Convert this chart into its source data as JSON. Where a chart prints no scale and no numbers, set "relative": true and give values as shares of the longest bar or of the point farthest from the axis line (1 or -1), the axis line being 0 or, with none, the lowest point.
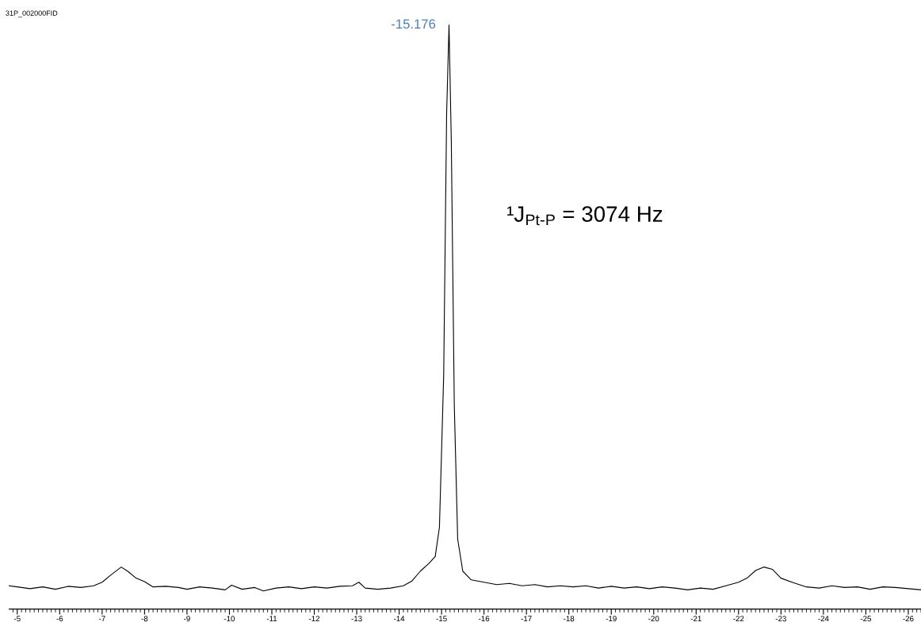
{
  "chart_data": {
    "type": "line",
    "relative": true,
    "x": [
      -4.81,
      -5.0,
      -5.3,
      -5.6,
      -5.9,
      -6.2,
      -6.5,
      -6.8,
      -7.0,
      -7.2,
      -7.45,
      -7.6,
      -7.8,
      -8.0,
      -8.2,
      -8.5,
      -8.8,
      -9.0,
      -9.3,
      -9.6,
      -9.9,
      -10.05,
      -10.3,
      -10.6,
      -10.8,
      -11.1,
      -11.4,
      -11.7,
      -12.0,
      -12.3,
      -12.6,
      -12.9,
      -13.05,
      -13.2,
      -13.5,
      -13.8,
      -14.1,
      -14.3,
      -14.5,
      -14.7,
      -14.85,
      -14.95,
      -15.05,
      -15.12,
      -15.176,
      -15.23,
      -15.3,
      -15.38,
      -15.5,
      -15.7,
      -16.0,
      -16.3,
      -16.6,
      -16.9,
      -17.2,
      -17.5,
      -17.8,
      -18.1,
      -18.4,
      -18.7,
      -19.0,
      -19.3,
      -19.6,
      -19.9,
      -20.2,
      -20.5,
      -20.8,
      -21.1,
      -21.4,
      -21.7,
      -22.0,
      -22.2,
      -22.4,
      -22.6,
      -22.8,
      -23.0,
      -23.3,
      -23.6,
      -23.9,
      -24.2,
      -24.5,
      -24.8,
      -25.1,
      -25.4,
      -25.7,
      -26.0,
      -26.3
    ],
    "series": [
      {
        "color": "#000000",
        "values": [
          0.04,
          0.038,
          0.035,
          0.038,
          0.034,
          0.039,
          0.037,
          0.04,
          0.046,
          0.058,
          0.072,
          0.065,
          0.053,
          0.047,
          0.038,
          0.039,
          0.037,
          0.034,
          0.038,
          0.036,
          0.033,
          0.041,
          0.034,
          0.037,
          0.031,
          0.036,
          0.038,
          0.035,
          0.038,
          0.036,
          0.039,
          0.04,
          0.046,
          0.036,
          0.034,
          0.036,
          0.04,
          0.048,
          0.065,
          0.078,
          0.09,
          0.14,
          0.4,
          0.85,
          1.0,
          0.8,
          0.35,
          0.12,
          0.065,
          0.05,
          0.046,
          0.042,
          0.044,
          0.04,
          0.042,
          0.038,
          0.04,
          0.038,
          0.04,
          0.036,
          0.039,
          0.036,
          0.038,
          0.035,
          0.038,
          0.036,
          0.033,
          0.036,
          0.034,
          0.04,
          0.046,
          0.053,
          0.066,
          0.072,
          0.068,
          0.053,
          0.045,
          0.038,
          0.036,
          0.04,
          0.037,
          0.038,
          0.034,
          0.038,
          0.037,
          0.035,
          0.033
        ]
      }
    ],
    "xlim": [
      -4.81,
      -26.3
    ],
    "xticks": [
      -5,
      -6,
      -7,
      -8,
      -9,
      -10,
      -11,
      -12,
      -13,
      -14,
      -15,
      -16,
      -17,
      -18,
      -19,
      -20,
      -21,
      -22,
      -23,
      -24,
      -25,
      -26
    ],
    "tick_labels": "x",
    "annotations": [
      "31P_002000FID",
      {
        "text": "-15.176",
        "x": -15.176,
        "y": 1.0
      },
      "¹J$_{Pt-P}$ = 3074 Hz"
    ]
  }
}
